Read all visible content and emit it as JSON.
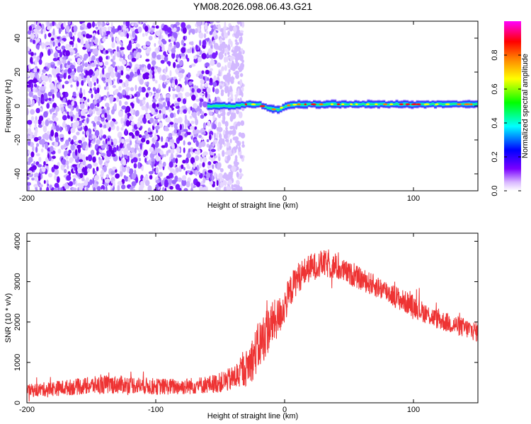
{
  "title": "YM08.2026.098.06.43.G21",
  "chart_data": [
    {
      "type": "heatmap",
      "panel": "spectrogram",
      "xlabel": "Height of straight line (km)",
      "ylabel": "Frequency (Hz)",
      "xlim": [
        -200,
        150
      ],
      "ylim": [
        -50,
        50
      ],
      "xticks": [
        -200,
        -100,
        0,
        100
      ],
      "yticks": [
        -40,
        -20,
        0,
        20,
        40
      ],
      "colorbar": {
        "label": "Normalized spectral amplitude",
        "range": [
          0,
          1
        ],
        "ticks": [
          "0.0",
          "0.2",
          "0.4",
          "0.6",
          "0.8"
        ],
        "tick_values": [
          0,
          0.2,
          0.4,
          0.6,
          0.8
        ],
        "colormap": [
          "#ffffff",
          "#7a00ff",
          "#0000ff",
          "#00ffff",
          "#00ff00",
          "#ffff00",
          "#ff8000",
          "#ff0000",
          "#ff00ff"
        ]
      },
      "noise_region_x": [
        -200,
        -40
      ],
      "signal_band": {
        "x_start": -60,
        "x_end": 150,
        "center_hz": [
          [
            -60,
            0
          ],
          [
            -40,
            0
          ],
          [
            -30,
            1
          ],
          [
            -20,
            1
          ],
          [
            -15,
            -1
          ],
          [
            -10,
            -2
          ],
          [
            -5,
            -2
          ],
          [
            0,
            0
          ],
          [
            10,
            1
          ],
          [
            50,
            1
          ],
          [
            100,
            1
          ],
          [
            150,
            1
          ]
        ],
        "half_width_hz": 2
      }
    },
    {
      "type": "line",
      "panel": "snr",
      "xlabel": "Height of straight line (km)",
      "ylabel": "SNR (10 * v/v)",
      "xlim": [
        -200,
        150
      ],
      "ylim": [
        0,
        4200
      ],
      "xticks": [
        -200,
        -100,
        0,
        100
      ],
      "yticks": [
        0,
        1000,
        2000,
        3000,
        4000
      ],
      "color": "#ee3333",
      "series": [
        {
          "name": "SNR",
          "x": [
            -200,
            -180,
            -160,
            -140,
            -120,
            -100,
            -80,
            -60,
            -50,
            -40,
            -30,
            -25,
            -20,
            -15,
            -10,
            -5,
            0,
            5,
            10,
            20,
            30,
            40,
            50,
            60,
            70,
            80,
            90,
            100,
            110,
            120,
            130,
            140,
            150
          ],
          "center": [
            300,
            350,
            400,
            450,
            450,
            400,
            400,
            450,
            500,
            600,
            850,
            1100,
            1400,
            1700,
            1950,
            2100,
            2400,
            2800,
            3100,
            3350,
            3450,
            3350,
            3200,
            3050,
            2900,
            2750,
            2550,
            2400,
            2200,
            2050,
            1950,
            1850,
            1750
          ],
          "spread": [
            250,
            300,
            330,
            380,
            350,
            330,
            330,
            350,
            400,
            500,
            700,
            900,
            1000,
            1000,
            900,
            800,
            700,
            650,
            600,
            550,
            550,
            500,
            450,
            450,
            450,
            450,
            450,
            450,
            400,
            400,
            400,
            400,
            400
          ]
        }
      ]
    }
  ]
}
